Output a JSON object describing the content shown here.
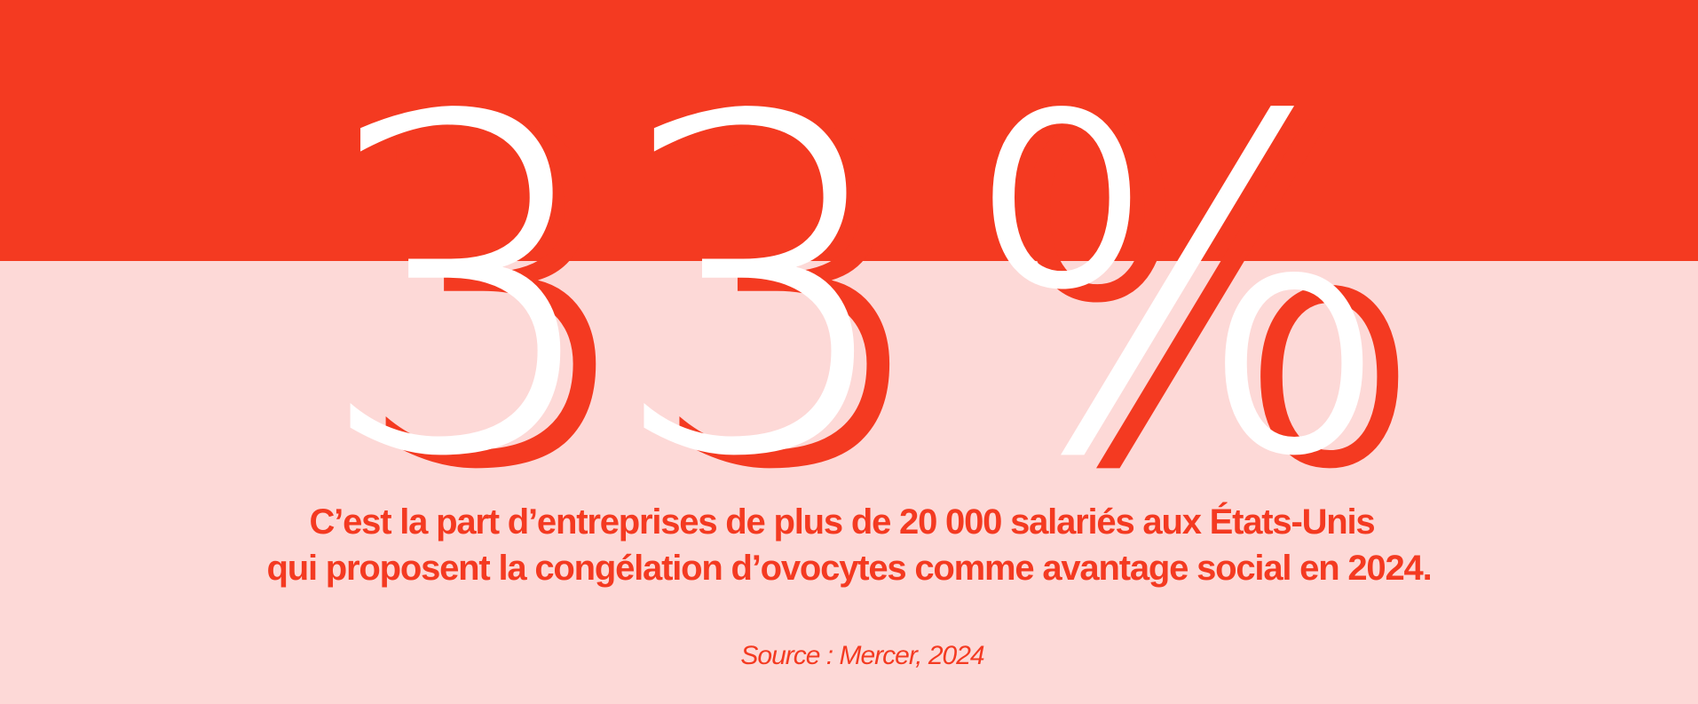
{
  "stat": {
    "value": "33",
    "unit": "%"
  },
  "caption": {
    "line1": "C’est la part d’entreprises de plus de 20 000 salariés aux États-Unis",
    "line2": "qui proposent la congélation d’ovocytes comme avantage social en 2024."
  },
  "source": {
    "label": "Source :",
    "text": "Mercer, 2024"
  },
  "colors": {
    "accent": "#f43a21",
    "background": "#fdd9d7",
    "number_fill": "#ffffff"
  }
}
